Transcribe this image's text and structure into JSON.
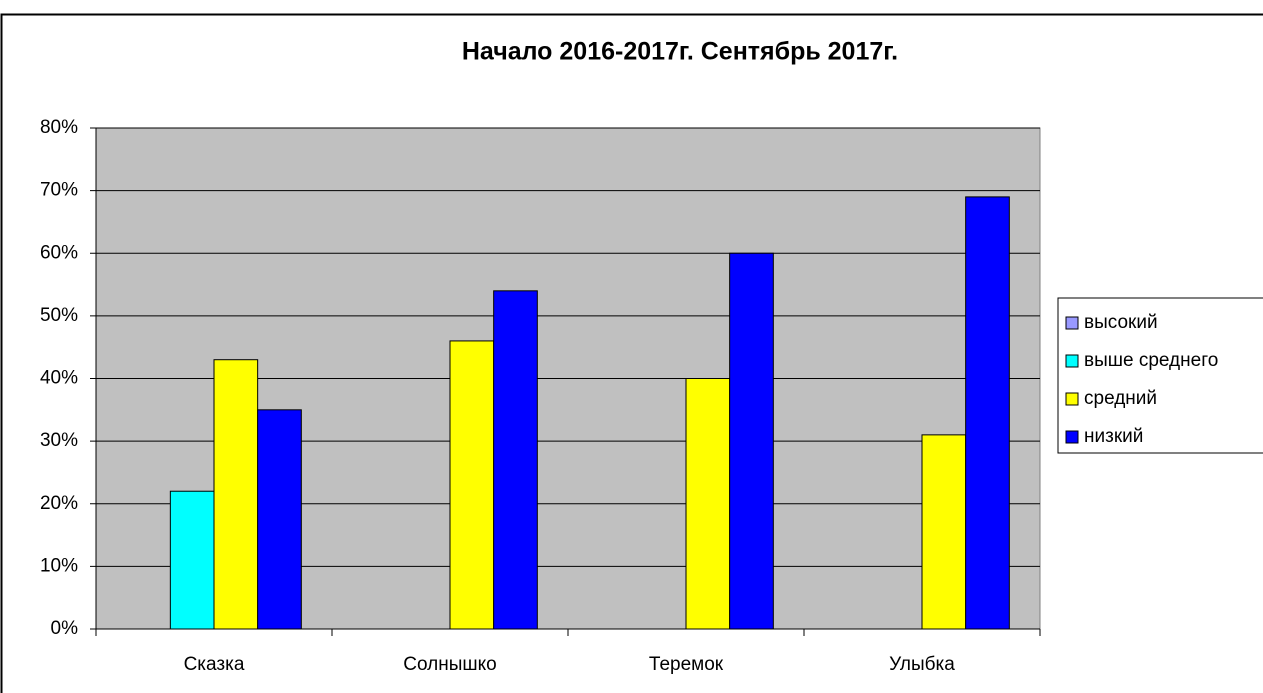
{
  "chart_data": {
    "type": "bar",
    "title": "Начало 2016-2017г. Сентябрь 2017г.",
    "categories": [
      "Сказка",
      "Солнышко",
      "Теремок",
      "Улыбка"
    ],
    "series": [
      {
        "name": "высокий",
        "color": "#9999ff",
        "values": [
          0,
          0,
          0,
          0
        ]
      },
      {
        "name": "выше среднего",
        "color": "#00ffff",
        "values": [
          22,
          0,
          0,
          0
        ]
      },
      {
        "name": "средний",
        "color": "#ffff00",
        "values": [
          43,
          46,
          40,
          31
        ]
      },
      {
        "name": "низкий",
        "color": "#0000ff",
        "values": [
          35,
          54,
          60,
          69
        ]
      }
    ],
    "ylim": [
      0,
      80
    ],
    "yticks": [
      {
        "value": 0,
        "label": "0%"
      },
      {
        "value": 10,
        "label": "10%"
      },
      {
        "value": 20,
        "label": "20%"
      },
      {
        "value": 30,
        "label": "30%"
      },
      {
        "value": 40,
        "label": "40%"
      },
      {
        "value": 50,
        "label": "50%"
      },
      {
        "value": 60,
        "label": "60%"
      },
      {
        "value": 70,
        "label": "70%"
      },
      {
        "value": 80,
        "label": "80%"
      }
    ],
    "grid": true,
    "legend": "right",
    "plot_background": "#c0c0c0"
  }
}
